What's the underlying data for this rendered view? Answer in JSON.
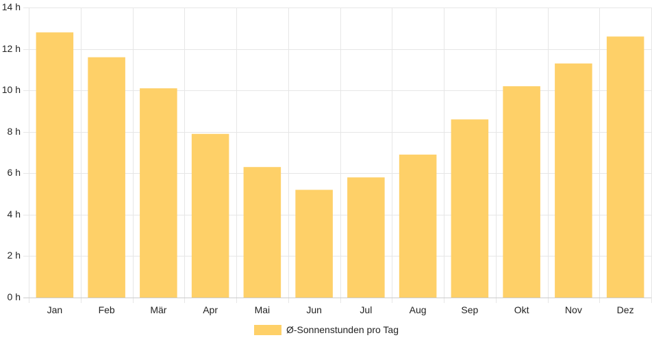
{
  "chart_data": {
    "type": "bar",
    "categories": [
      "Jan",
      "Feb",
      "Mär",
      "Apr",
      "Mai",
      "Jun",
      "Jul",
      "Aug",
      "Sep",
      "Okt",
      "Nov",
      "Dez"
    ],
    "series": [
      {
        "name": "Ø-Sonnenstunden pro Tag",
        "values": [
          12.8,
          11.6,
          10.1,
          7.9,
          6.3,
          5.2,
          5.8,
          6.9,
          8.6,
          10.2,
          11.3,
          12.6
        ],
        "color": "#fed068"
      }
    ],
    "yticks": [
      "0 h",
      "2 h",
      "4 h",
      "6 h",
      "8 h",
      "10 h",
      "12 h",
      "14 h"
    ],
    "ylim": [
      0,
      14
    ],
    "grid": true,
    "legend_position": "bottom"
  },
  "colors": {
    "grid": "#e6e6e6",
    "axis": "#cccccc",
    "text": "#222222"
  }
}
